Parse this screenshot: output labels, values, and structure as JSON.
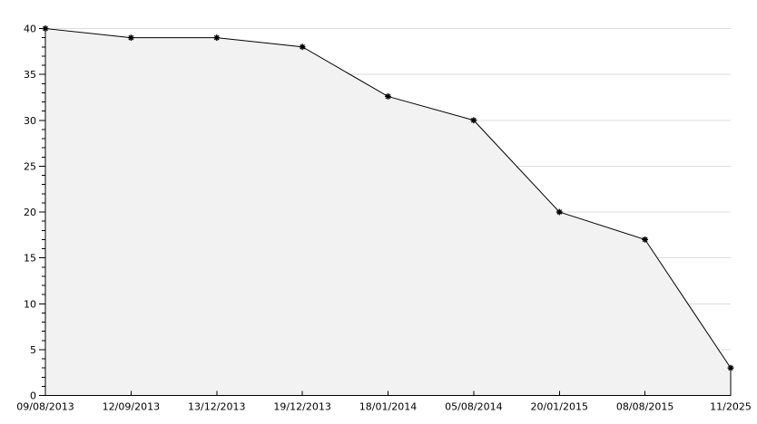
{
  "chart_data": {
    "type": "area",
    "title": "",
    "legend": "none",
    "x_labels": [
      "09/08/2013",
      "12/09/2013",
      "13/12/2013",
      "19/12/2013",
      "18/01/2014",
      "05/08/2014",
      "20/01/2015",
      "08/08/2015",
      "11/2025"
    ],
    "values": [
      40,
      39,
      39,
      38,
      32.6,
      30,
      20,
      17,
      3
    ],
    "ylim": [
      0,
      40
    ],
    "y_major_step": 5,
    "y_minor_step": 1,
    "y_tick_labels": [
      "0",
      "5",
      "10",
      "15",
      "20",
      "25",
      "30",
      "35",
      "40"
    ],
    "grid": "horizontal-major, drawn beneath area fill",
    "marker": "black-asterisk",
    "colors": {
      "background": "#ffffff",
      "line": "#000000",
      "marker": "#000000",
      "area_fill": "#f2f2f2",
      "grid": "#dcdcdc",
      "axis": "#000000",
      "label": "#000000"
    }
  }
}
